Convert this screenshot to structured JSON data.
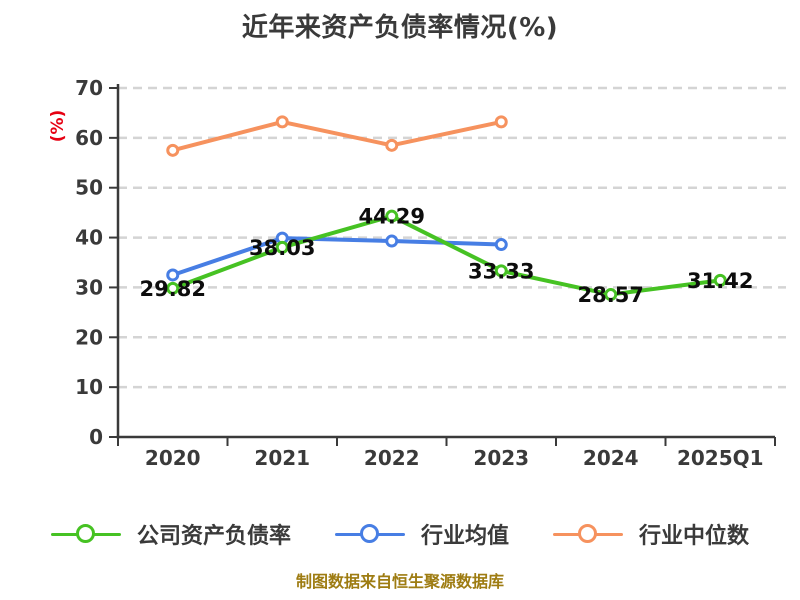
{
  "colors": {
    "background": "#FFFFFF",
    "title_text": "#3A3A3A",
    "axis": "#3A3A3A",
    "tick_text": "#3A3A3A",
    "grid": "#D4D4D4",
    "y_unit_label": "#E60012",
    "data_label": "#0D0D0D",
    "legend_text": "#3A3A3A",
    "footer_text": "#9E7C12"
  },
  "chart_data": {
    "type": "line",
    "title": "近年来资产负债率情况(%)",
    "ylabel": "(%)",
    "categories": [
      "2020",
      "2021",
      "2022",
      "2023",
      "2024",
      "2025Q1"
    ],
    "ylim": [
      0,
      70
    ],
    "yticks": [
      0,
      10,
      20,
      30,
      40,
      50,
      60,
      70
    ],
    "grid": "horizontal-dashed",
    "legend_position": "bottom",
    "series": [
      {
        "name": "公司资产负债率",
        "color": "#46C223",
        "show_labels": true,
        "values": [
          29.82,
          38.03,
          44.29,
          33.33,
          28.57,
          31.42
        ]
      },
      {
        "name": "行业均值",
        "color": "#477EE4",
        "show_labels": false,
        "values": [
          32.5,
          39.9,
          39.3,
          38.6,
          null,
          null
        ]
      },
      {
        "name": "行业中位数",
        "color": "#F6925E",
        "show_labels": false,
        "values": [
          57.5,
          63.2,
          58.5,
          63.2,
          null,
          null
        ]
      }
    ]
  },
  "footer": {
    "text": "制图数据来自恒生聚源数据库"
  }
}
